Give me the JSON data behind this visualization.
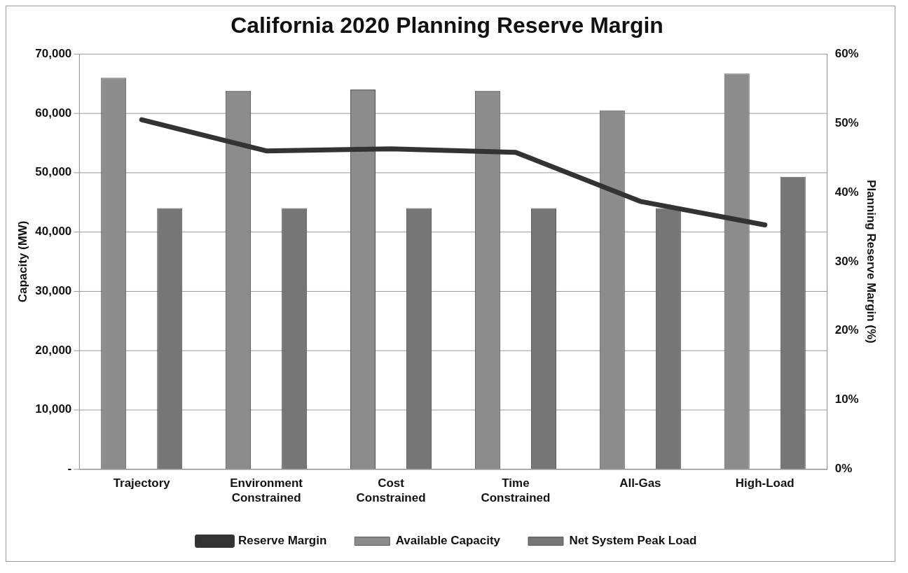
{
  "chart_data": {
    "type": "bar",
    "title": "California 2020 Planning Reserve Margin",
    "ylabel": "Capacity (MW)",
    "y2label": "Planning Reserve Margin (%)",
    "categories": [
      "Trajectory",
      "Environment Constrained",
      "Cost Constrained",
      "Time Constrained",
      "All-Gas",
      "High-Load"
    ],
    "series": [
      {
        "name": "Available Capacity",
        "color": "#8c8c8c",
        "values": [
          66000,
          63800,
          64000,
          63800,
          60500,
          66700
        ]
      },
      {
        "name": "Net System Peak Load",
        "color": "#767676",
        "values": [
          44000,
          44000,
          44000,
          44000,
          44000,
          49300
        ]
      },
      {
        "name": "Reserve Margin",
        "type": "line",
        "axis": "y2",
        "color": "#333333",
        "values": [
          50.5,
          46,
          46.3,
          45.8,
          38.7,
          35.3
        ]
      }
    ],
    "ylim": [
      0,
      70000
    ],
    "yticks": [
      {
        "value": 0,
        "label": "-"
      },
      {
        "value": 10000,
        "label": "10,000"
      },
      {
        "value": 20000,
        "label": "20,000"
      },
      {
        "value": 30000,
        "label": "30,000"
      },
      {
        "value": 40000,
        "label": "40,000"
      },
      {
        "value": 50000,
        "label": "50,000"
      },
      {
        "value": 60000,
        "label": "60,000"
      },
      {
        "value": 70000,
        "label": "70,000"
      }
    ],
    "y2lim": [
      0,
      60
    ],
    "y2ticks": [
      {
        "value": 0,
        "label": "0%"
      },
      {
        "value": 10,
        "label": "10%"
      },
      {
        "value": 20,
        "label": "20%"
      },
      {
        "value": 30,
        "label": "30%"
      },
      {
        "value": 40,
        "label": "40%"
      },
      {
        "value": 50,
        "label": "50%"
      },
      {
        "value": 60,
        "label": "60%"
      }
    ],
    "grid": "y",
    "legend": "bottom",
    "marker": "none"
  }
}
